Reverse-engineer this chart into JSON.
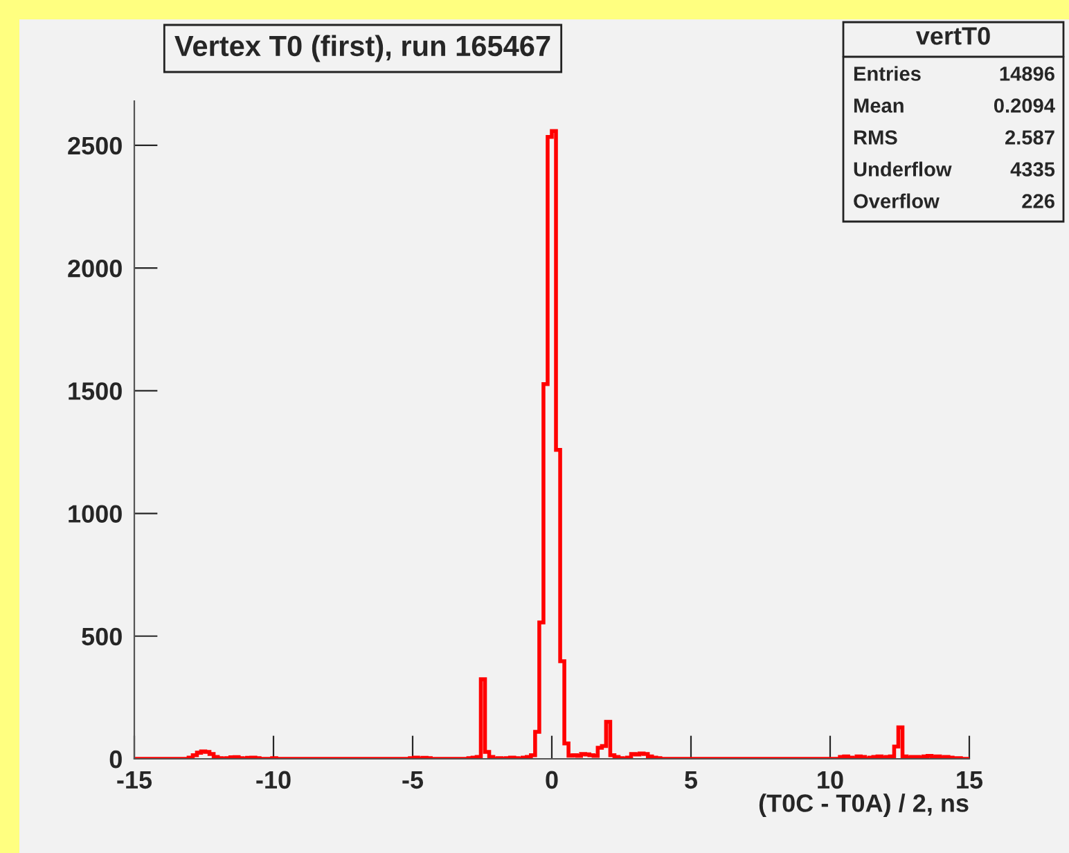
{
  "chart_data": {
    "type": "histogram",
    "title": "Vertex T0 (first), run 165467",
    "xlabel": "(T0C - T0A) / 2, ns",
    "color": "#ff0000",
    "bins": [
      -15,
      -14.85,
      -14.7,
      -14.55,
      -14.4,
      -14.25,
      -14.1,
      -13.95,
      -13.8,
      -13.65,
      -13.5,
      -13.35,
      -13.2,
      -13.05,
      -12.9,
      -12.75,
      -12.6,
      -12.45,
      -12.3,
      -12.15,
      -12,
      -11.85,
      -11.7,
      -11.55,
      -11.4,
      -11.25,
      -11.1,
      -10.95,
      -10.8,
      -10.65,
      -10.5,
      -10.35,
      -10.2,
      -10.05,
      -9.9,
      -9.75,
      -9.6,
      -9.45,
      -9.3,
      -9.15,
      -9,
      -8.85,
      -8.7,
      -8.55,
      -8.4,
      -8.25,
      -8.1,
      -7.95,
      -7.8,
      -7.65,
      -7.5,
      -7.35,
      -7.2,
      -7.05,
      -6.9,
      -6.75,
      -6.6,
      -6.45,
      -6.3,
      -6.15,
      -6,
      -5.85,
      -5.7,
      -5.55,
      -5.4,
      -5.25,
      -5.1,
      -4.95,
      -4.8,
      -4.65,
      -4.5,
      -4.35,
      -4.2,
      -4.05,
      -3.9,
      -3.75,
      -3.6,
      -3.45,
      -3.3,
      -3.15,
      -3,
      -2.85,
      -2.7,
      -2.55,
      -2.4,
      -2.25,
      -2.1,
      -1.95,
      -1.8,
      -1.65,
      -1.5,
      -1.35,
      -1.2,
      -1.05,
      -0.9,
      -0.75,
      -0.6,
      -0.45,
      -0.3,
      -0.15,
      0,
      0.15,
      0.3,
      0.45,
      0.6,
      0.75,
      0.9,
      1.05,
      1.2,
      1.35,
      1.5,
      1.65,
      1.8,
      1.95,
      2.1,
      2.25,
      2.4,
      2.55,
      2.7,
      2.85,
      3,
      3.15,
      3.3,
      3.45,
      3.6,
      3.75,
      3.9,
      4.05,
      4.2,
      4.35,
      4.5,
      4.65,
      4.8,
      4.95,
      5.1,
      5.25,
      5.4,
      5.55,
      5.7,
      5.85,
      6,
      6.15,
      6.3,
      6.45,
      6.6,
      6.75,
      6.9,
      7.05,
      7.2,
      7.35,
      7.5,
      7.65,
      7.8,
      7.95,
      8.1,
      8.25,
      8.4,
      8.55,
      8.7,
      8.85,
      9,
      9.15,
      9.3,
      9.45,
      9.6,
      9.75,
      9.9,
      10.05,
      10.2,
      10.35,
      10.5,
      10.65,
      10.8,
      10.95,
      11.1,
      11.25,
      11.4,
      11.55,
      11.7,
      11.85,
      12,
      12.15,
      12.3,
      12.45,
      12.6,
      12.75,
      12.9,
      13.05,
      13.2,
      13.35,
      13.5,
      13.65,
      13.8,
      13.95,
      14.1,
      14.25,
      14.4,
      14.55,
      14.7,
      14.85,
      15
    ],
    "values": [
      0,
      0,
      0,
      0,
      0,
      0,
      0,
      0,
      0,
      0,
      0,
      0,
      0,
      5,
      15,
      25,
      30,
      28,
      20,
      8,
      3,
      0,
      3,
      6,
      7,
      3,
      0,
      4,
      5,
      3,
      0,
      0,
      0,
      3,
      0,
      0,
      0,
      0,
      0,
      0,
      0,
      0,
      0,
      0,
      0,
      0,
      0,
      0,
      0,
      0,
      0,
      0,
      0,
      0,
      0,
      0,
      0,
      0,
      0,
      0,
      0,
      0,
      0,
      0,
      0,
      0,
      3,
      5,
      0,
      4,
      3,
      0,
      0,
      0,
      0,
      0,
      0,
      0,
      0,
      0,
      3,
      5,
      8,
      324,
      28,
      8,
      0,
      3,
      0,
      3,
      5,
      3,
      0,
      5,
      8,
      15,
      110,
      556,
      1527,
      2534,
      2558,
      1259,
      398,
      63,
      13,
      15,
      12,
      20,
      18,
      15,
      12,
      45,
      52,
      151,
      15,
      8,
      3,
      0,
      5,
      20,
      18,
      22,
      20,
      10,
      5,
      3,
      0,
      0,
      0,
      0,
      0,
      0,
      0,
      0,
      0,
      0,
      0,
      0,
      0,
      0,
      0,
      0,
      0,
      0,
      0,
      0,
      0,
      0,
      0,
      0,
      0,
      0,
      0,
      0,
      0,
      0,
      0,
      0,
      0,
      0,
      0,
      0,
      0,
      0,
      0,
      0,
      0,
      0,
      0,
      8,
      10,
      5,
      3,
      10,
      8,
      0,
      5,
      8,
      10,
      5,
      8,
      10,
      50,
      128,
      10,
      5,
      8,
      8,
      5,
      10,
      12,
      8,
      10,
      5,
      8,
      5,
      3,
      3,
      0,
      0
    ],
    "xlim": [
      -15,
      15
    ],
    "xticks": [
      -15,
      -10,
      -5,
      0,
      5,
      10,
      15
    ],
    "ylim": [
      0,
      2680
    ],
    "yticks": [
      0,
      500,
      1000,
      1500,
      2000,
      2500
    ],
    "grid": false,
    "legend": false,
    "annotations": [
      "vertT0",
      "Entries",
      "14896",
      "Mean",
      "0.2094",
      "RMS",
      "2.587",
      "Underflow",
      "4335",
      "Overflow",
      "226"
    ]
  }
}
